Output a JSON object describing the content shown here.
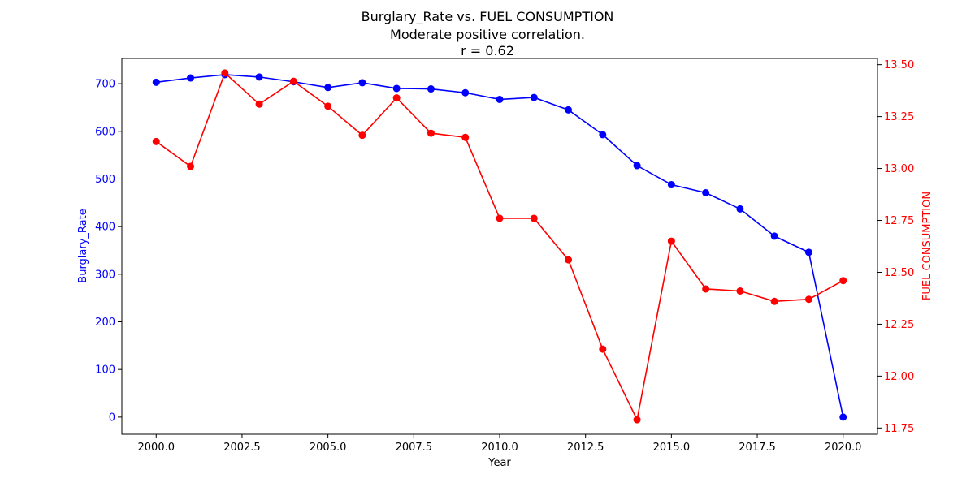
{
  "chart_data": {
    "type": "line",
    "title_lines": [
      "Burglary_Rate vs. FUEL CONSUMPTION",
      "Moderate positive correlation.",
      "r = 0.62"
    ],
    "xlabel": "Year",
    "ylabel_left": "Burglary_Rate",
    "ylabel_right": "FUEL CONSUMPTION",
    "x": [
      2000,
      2001,
      2002,
      2003,
      2004,
      2005,
      2006,
      2007,
      2008,
      2009,
      2010,
      2011,
      2012,
      2013,
      2014,
      2015,
      2016,
      2017,
      2018,
      2019,
      2020
    ],
    "xlim": [
      1999.0,
      2021.0
    ],
    "xticks": [
      "2000.0",
      "2002.5",
      "2005.0",
      "2007.5",
      "2010.0",
      "2012.5",
      "2015.0",
      "2017.5",
      "2020.0"
    ],
    "xtick_values": [
      2000.0,
      2002.5,
      2005.0,
      2007.5,
      2010.0,
      2012.5,
      2015.0,
      2017.5,
      2020.0
    ],
    "ylim_left": [
      -36,
      753
    ],
    "yticks_left": [
      0,
      100,
      200,
      300,
      400,
      500,
      600,
      700
    ],
    "ylim_right": [
      11.72,
      13.53
    ],
    "yticks_right": [
      "11.75",
      "12.00",
      "12.25",
      "12.50",
      "12.75",
      "13.00",
      "13.25",
      "13.50"
    ],
    "ytick_values_right": [
      11.75,
      12.0,
      12.25,
      12.5,
      12.75,
      13.0,
      13.25,
      13.5
    ],
    "grid": false,
    "series": [
      {
        "name": "Burglary_Rate",
        "axis": "left",
        "color": "#0000ff",
        "values": [
          703,
          712,
          719,
          714,
          704,
          692,
          702,
          690,
          689,
          681,
          667,
          671,
          645,
          593,
          528,
          488,
          471,
          437,
          380,
          346,
          0
        ]
      },
      {
        "name": "FUEL CONSUMPTION",
        "axis": "right",
        "color": "#ff0000",
        "values": [
          13.13,
          13.01,
          13.46,
          13.31,
          13.42,
          13.3,
          13.16,
          13.34,
          13.17,
          13.15,
          12.76,
          12.76,
          12.56,
          12.13,
          11.79,
          12.65,
          12.42,
          12.41,
          12.36,
          12.37,
          12.46
        ]
      }
    ]
  }
}
